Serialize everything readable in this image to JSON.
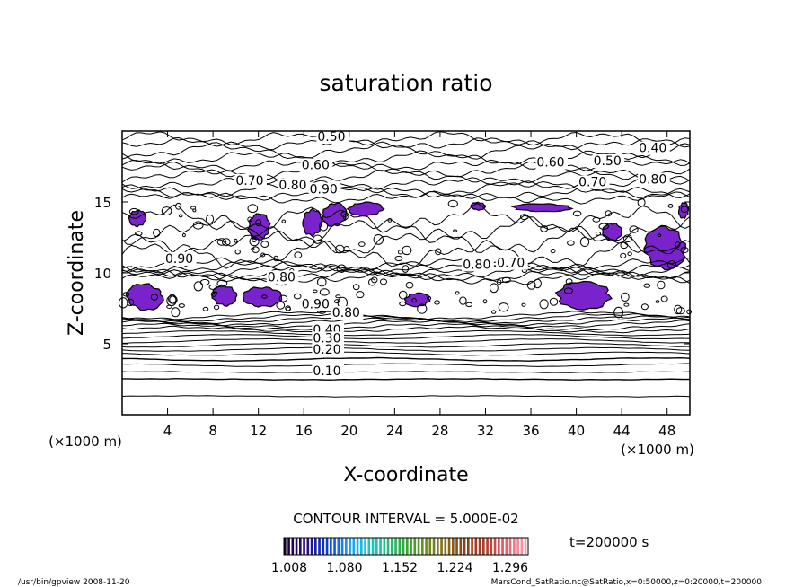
{
  "chart_data": {
    "type": "contour",
    "title": "saturation ratio",
    "xlabel": "X-coordinate",
    "ylabel": "Z-coordinate",
    "x_unit": "(×1000 m)",
    "y_unit": "(×1000 m)",
    "xlim": [
      0,
      50
    ],
    "ylim": [
      0,
      20
    ],
    "x_ticks": [
      4,
      8,
      12,
      16,
      20,
      24,
      28,
      32,
      36,
      40,
      44,
      48
    ],
    "y_ticks": [
      5,
      10,
      15
    ],
    "contour_interval_text": "CONTOUR INTERVAL = 5.000E-02",
    "contour_labels": [
      {
        "x": 17.2,
        "z": 19.3,
        "text": "0.50"
      },
      {
        "x": 45.5,
        "z": 18.5,
        "text": "0.40"
      },
      {
        "x": 15.8,
        "z": 17.3,
        "text": "0.60"
      },
      {
        "x": 36.5,
        "z": 17.5,
        "text": "0.60"
      },
      {
        "x": 41.5,
        "z": 17.6,
        "text": "0.50"
      },
      {
        "x": 10.0,
        "z": 16.2,
        "text": "0.70"
      },
      {
        "x": 13.8,
        "z": 15.9,
        "text": "0.80"
      },
      {
        "x": 16.5,
        "z": 15.6,
        "text": "0.90"
      },
      {
        "x": 40.2,
        "z": 16.1,
        "text": "0.70"
      },
      {
        "x": 45.5,
        "z": 16.3,
        "text": "0.80"
      },
      {
        "x": 3.8,
        "z": 10.7,
        "text": "0.90"
      },
      {
        "x": 12.8,
        "z": 9.4,
        "text": "0.80"
      },
      {
        "x": 30.0,
        "z": 10.3,
        "text": "0.80"
      },
      {
        "x": 33.0,
        "z": 10.4,
        "text": "0.70"
      },
      {
        "x": 15.8,
        "z": 7.5,
        "text": "0.90"
      },
      {
        "x": 18.5,
        "z": 6.9,
        "text": "0.80"
      },
      {
        "x": 16.8,
        "z": 5.7,
        "text": "0.40"
      },
      {
        "x": 16.8,
        "z": 5.1,
        "text": "0.30"
      },
      {
        "x": 16.8,
        "z": 4.3,
        "text": "0.20"
      },
      {
        "x": 16.8,
        "z": 2.8,
        "text": "0.10"
      }
    ],
    "supersaturated_regions": [
      {
        "x": [
          0.3,
          3.7
        ],
        "z": [
          7.3,
          9.3
        ]
      },
      {
        "x": [
          7.9,
          10.1
        ],
        "z": [
          7.6,
          9.2
        ]
      },
      {
        "x": [
          10.6,
          14.1
        ],
        "z": [
          7.5,
          9.1
        ]
      },
      {
        "x": [
          15.9,
          17.6
        ],
        "z": [
          12.5,
          14.6
        ]
      },
      {
        "x": [
          17.6,
          19.8
        ],
        "z": [
          13.2,
          15.0
        ]
      },
      {
        "x": [
          19.8,
          23.1
        ],
        "z": [
          14.0,
          15.0
        ]
      },
      {
        "x": [
          11.0,
          13.1
        ],
        "z": [
          12.3,
          14.2
        ]
      },
      {
        "x": [
          38.0,
          43.3
        ],
        "z": [
          7.4,
          9.4
        ]
      },
      {
        "x": [
          45.8,
          49.8
        ],
        "z": [
          10.2,
          13.3
        ]
      },
      {
        "x": [
          34.3,
          39.7
        ],
        "z": [
          14.3,
          14.9
        ]
      },
      {
        "x": [
          30.7,
          32.0
        ],
        "z": [
          14.4,
          15.0
        ]
      },
      {
        "x": [
          42.3,
          44.0
        ],
        "z": [
          12.2,
          13.6
        ]
      },
      {
        "x": [
          0.6,
          2.1
        ],
        "z": [
          13.2,
          14.5
        ]
      },
      {
        "x": [
          49.0,
          49.9
        ],
        "z": [
          13.8,
          15.0
        ]
      },
      {
        "x": [
          24.8,
          27.2
        ],
        "z": [
          7.6,
          8.6
        ]
      }
    ],
    "colorbar": {
      "tick_labels": [
        "1.008",
        "1.080",
        "1.152",
        "1.224",
        "1.296"
      ],
      "colors": [
        "#1a0033",
        "#2a0a80",
        "#0a33c8",
        "#1a8cff",
        "#19c4e0",
        "#22c08a",
        "#33a833",
        "#6b8f1f",
        "#8a6a18",
        "#8a3f18",
        "#b03a2a",
        "#e0606a",
        "#ff9db0"
      ]
    },
    "time_label": "t=200000 s",
    "footer_left": "/usr/bin/gpview   2008-11-20",
    "footer_right": "MarsCond_SatRatio.nc@SatRatio,x=0:50000,z=0:20000,t=200000",
    "fill_color": "#7a22cc"
  }
}
